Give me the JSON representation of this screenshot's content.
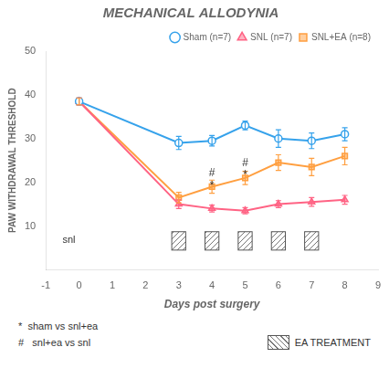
{
  "chart_data": {
    "type": "line",
    "title": "MECHANICAL ALLODYNIA",
    "x_label": "Days post surgery",
    "y_label": "PAW WITHDRAWAL THRESHOLD",
    "xlim": [
      -1,
      9
    ],
    "xticks": [
      -1,
      0,
      1,
      2,
      3,
      4,
      5,
      6,
      7,
      8,
      9
    ],
    "ylim": [
      0,
      50
    ],
    "yticks": [
      10,
      20,
      30,
      40,
      50
    ],
    "grid": false,
    "legend": "upper right",
    "series": [
      {
        "name": "Sham (n=7)",
        "marker": "circle-open",
        "x": [
          0,
          3,
          4,
          5,
          6,
          7,
          8
        ],
        "values": [
          38.5,
          29.0,
          29.5,
          33.0,
          30.0,
          29.5,
          31.0
        ],
        "errors": [
          0.8,
          1.5,
          1.2,
          1.0,
          2.0,
          1.8,
          1.5
        ]
      },
      {
        "name": "SNL (n=7)",
        "marker": "triangle",
        "x": [
          0,
          3,
          4,
          5,
          6,
          7,
          8
        ],
        "values": [
          38.5,
          15.0,
          14.0,
          13.5,
          15.0,
          15.5,
          16.0
        ],
        "errors": [
          0.8,
          1.0,
          0.8,
          0.7,
          0.8,
          1.0,
          1.0
        ]
      },
      {
        "name": "SNL+EA (n=8)",
        "marker": "square",
        "x": [
          0,
          3,
          4,
          5,
          6,
          7,
          8
        ],
        "values": [
          38.5,
          16.5,
          19.0,
          21.0,
          24.5,
          23.5,
          26.0
        ],
        "errors": [
          0.8,
          1.2,
          1.5,
          1.5,
          1.8,
          2.0,
          2.0
        ]
      }
    ],
    "annotations": [
      {
        "text": "snl",
        "x": -0.5,
        "y": 6.8,
        "align": "left"
      },
      {
        "text": "#",
        "x": 4.0,
        "y": 20.8,
        "align": "center"
      },
      {
        "text": "*",
        "x": 4.0,
        "y": 18.0,
        "align": "center"
      },
      {
        "text": "#",
        "x": 5.0,
        "y": 23.2,
        "align": "center"
      },
      {
        "text": "*",
        "x": 5.0,
        "y": 20.4,
        "align": "center"
      }
    ],
    "treatment": {
      "label": "EA TREATMENT",
      "days": [
        3,
        4,
        5,
        6,
        7
      ],
      "y_from": 4.5,
      "y_to": 8.7
    },
    "notes": [
      "*  sham vs snl+ea",
      "#   snl+ea vs snl"
    ]
  }
}
